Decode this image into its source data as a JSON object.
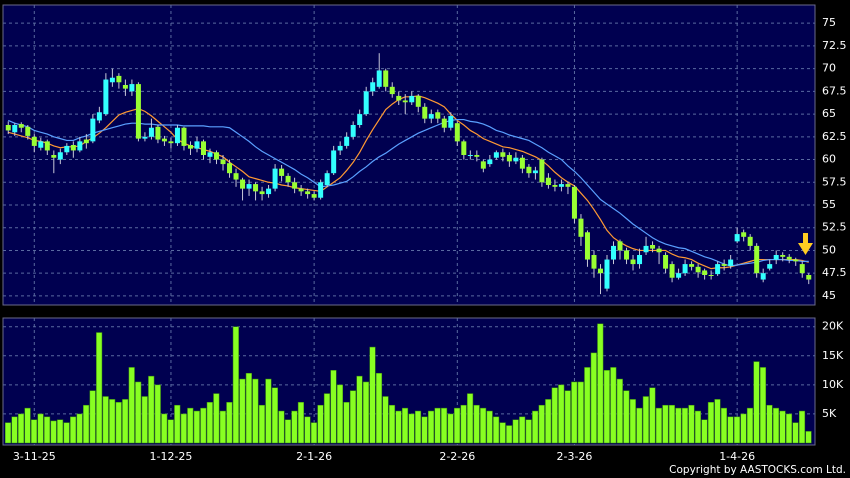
{
  "chart_data": [
    {
      "type": "candlestick",
      "categories": [
        null,
        null,
        null,
        null,
        "3-11-25",
        null,
        null,
        null,
        null,
        null,
        null,
        null,
        null,
        null,
        null,
        null,
        null,
        null,
        null,
        null,
        null,
        null,
        null,
        null,
        null,
        "1-12-25",
        null,
        null,
        null,
        null,
        null,
        null,
        null,
        null,
        null,
        null,
        null,
        null,
        null,
        null,
        null,
        null,
        null,
        null,
        null,
        null,
        null,
        "2-1-26",
        null,
        null,
        null,
        null,
        null,
        null,
        null,
        null,
        null,
        null,
        null,
        null,
        null,
        null,
        null,
        null,
        null,
        null,
        null,
        null,
        null,
        "2-2-26",
        null,
        null,
        null,
        null,
        null,
        null,
        null,
        null,
        null,
        null,
        null,
        null,
        null,
        null,
        null,
        null,
        null,
        "2-3-26",
        null,
        null,
        null,
        null,
        null,
        null,
        null,
        null,
        null,
        null,
        null,
        null,
        null,
        null,
        null,
        null,
        null,
        null,
        null,
        null,
        null,
        null,
        null,
        null,
        "1-4-26",
        null,
        null,
        null,
        null,
        null,
        null,
        null,
        null,
        null,
        null,
        null
      ],
      "open": [
        63.8,
        63.0,
        63.9,
        63.6,
        62.5,
        61.3,
        62.0,
        60.5,
        60.0,
        60.8,
        61.6,
        61.0,
        62.2,
        62.0,
        64.3,
        65.0,
        68.5,
        69.2,
        68.2,
        67.5,
        68.3,
        62.3,
        62.5,
        63.6,
        62.3,
        62.0,
        61.8,
        63.5,
        61.6,
        61.2,
        62.0,
        60.3,
        60.8,
        60.0,
        59.6,
        58.5,
        57.8,
        56.8,
        57.3,
        56.5,
        56.2,
        56.8,
        59.0,
        58.2,
        57.5,
        56.8,
        56.5,
        56.2,
        55.8,
        57.2,
        58.5,
        61.0,
        61.5,
        62.5,
        63.8,
        65.0,
        67.5,
        68.0,
        69.8,
        68.0,
        67.0,
        66.5,
        66.3,
        67.0,
        65.8,
        64.5,
        65.2,
        64.5,
        63.5,
        64.0,
        62.0,
        60.5,
        60.5,
        59.8,
        59.5,
        60.2,
        60.8,
        60.5,
        59.8,
        60.2,
        59.2,
        58.5,
        60.0,
        58.0,
        57.2,
        57.0,
        57.3,
        57.0,
        53.5,
        52.0,
        49.5,
        48.0,
        45.8,
        49.0,
        51.0,
        50.0,
        49.0,
        48.5,
        49.8,
        50.6,
        50.2,
        49.5,
        48.5,
        47.0,
        47.5,
        48.5,
        48.2,
        47.8,
        47.3,
        47.4,
        48.5,
        48.3,
        51.0,
        52.0,
        51.5,
        50.5,
        46.8,
        48.0,
        49.0,
        49.5,
        49.3,
        49.0,
        48.5,
        47.3
      ],
      "high": [
        64.2,
        64.0,
        64.1,
        63.8,
        62.8,
        62.4,
        62.2,
        61.0,
        61.2,
        61.8,
        62.0,
        62.5,
        62.8,
        65.0,
        65.8,
        69.5,
        70.0,
        69.5,
        68.8,
        68.8,
        68.5,
        63.0,
        64.5,
        63.8,
        62.6,
        62.4,
        63.8,
        63.6,
        62.0,
        62.5,
        62.2,
        61.2,
        61.0,
        60.5,
        60.0,
        59.0,
        58.0,
        57.8,
        57.5,
        57.0,
        57.2,
        59.5,
        59.4,
        58.5,
        58.0,
        57.2,
        56.8,
        56.5,
        57.8,
        58.8,
        61.5,
        62.0,
        63.0,
        64.2,
        65.5,
        68.0,
        69.0,
        71.7,
        70.0,
        68.5,
        67.5,
        67.2,
        67.5,
        67.2,
        66.2,
        65.5,
        65.5,
        64.8,
        65.2,
        64.2,
        62.2,
        61.0,
        61.0,
        60.0,
        60.5,
        61.0,
        61.2,
        60.8,
        60.8,
        60.5,
        59.5,
        59.2,
        60.2,
        58.5,
        57.8,
        57.8,
        57.6,
        57.2,
        54.0,
        52.2,
        50.0,
        48.5,
        49.5,
        51.0,
        51.2,
        50.3,
        49.5,
        50.2,
        51.5,
        51.0,
        50.5,
        49.8,
        48.8,
        48.0,
        49.0,
        48.8,
        48.5,
        48.0,
        47.8,
        48.8,
        49.0,
        49.5,
        52.5,
        52.3,
        51.8,
        50.8,
        48.0,
        49.0,
        50.0,
        49.8,
        49.6,
        49.2,
        48.8,
        47.5
      ],
      "low": [
        62.8,
        62.6,
        63.0,
        62.2,
        60.8,
        61.0,
        60.5,
        58.5,
        59.5,
        60.5,
        60.2,
        60.8,
        61.2,
        61.8,
        64.0,
        64.8,
        68.0,
        67.8,
        67.0,
        67.0,
        62.0,
        62.0,
        62.2,
        61.8,
        61.5,
        61.2,
        61.5,
        61.0,
        60.5,
        60.8,
        60.0,
        59.6,
        59.5,
        58.8,
        58.0,
        57.0,
        55.5,
        56.0,
        55.5,
        55.5,
        55.8,
        56.5,
        57.6,
        57.0,
        56.3,
        56.0,
        55.7,
        55.5,
        55.6,
        57.0,
        58.3,
        60.5,
        61.2,
        62.2,
        63.5,
        64.8,
        67.0,
        67.8,
        67.5,
        66.8,
        66.0,
        65.0,
        66.0,
        65.2,
        64.0,
        64.0,
        64.0,
        63.0,
        63.2,
        61.5,
        60.0,
        60.0,
        59.8,
        58.6,
        59.2,
        60.0,
        59.8,
        59.2,
        59.5,
        58.5,
        58.0,
        57.8,
        57.0,
        56.8,
        56.5,
        56.5,
        56.2,
        53.0,
        50.5,
        48.2,
        47.0,
        45.2,
        45.5,
        48.5,
        49.0,
        48.5,
        47.8,
        48.0,
        49.5,
        49.8,
        48.5,
        47.5,
        46.5,
        46.8,
        47.2,
        47.8,
        47.0,
        46.8,
        46.8,
        47.2,
        47.8,
        48.0,
        50.8,
        51.0,
        50.0,
        47.0,
        46.5,
        47.8,
        48.5,
        48.8,
        48.6,
        48.3,
        47.0,
        46.3
      ],
      "close": [
        63.2,
        63.8,
        63.5,
        62.6,
        61.5,
        62.0,
        61.0,
        60.2,
        60.8,
        61.5,
        61.0,
        62.0,
        61.8,
        64.5,
        65.2,
        68.8,
        69.0,
        68.5,
        67.8,
        68.3,
        62.3,
        62.5,
        63.5,
        62.2,
        62.0,
        61.8,
        63.5,
        61.5,
        61.2,
        62.0,
        60.5,
        60.8,
        60.0,
        59.5,
        58.5,
        57.8,
        56.8,
        57.3,
        56.5,
        56.2,
        56.8,
        59.0,
        58.2,
        57.5,
        56.8,
        56.5,
        56.2,
        55.8,
        57.5,
        58.5,
        61.0,
        61.5,
        62.5,
        63.8,
        65.0,
        67.5,
        68.5,
        69.8,
        68.0,
        67.2,
        66.5,
        66.3,
        67.0,
        65.8,
        64.5,
        65.0,
        64.5,
        63.5,
        64.8,
        62.0,
        60.5,
        60.5,
        60.3,
        59.0,
        60.0,
        60.8,
        60.3,
        59.8,
        60.2,
        59.0,
        58.5,
        58.8,
        57.5,
        57.2,
        57.0,
        57.3,
        57.0,
        53.5,
        51.5,
        49.0,
        48.0,
        47.5,
        49.0,
        50.5,
        50.0,
        49.0,
        48.5,
        49.5,
        50.5,
        50.2,
        49.8,
        48.0,
        47.0,
        47.5,
        48.5,
        48.2,
        47.6,
        47.3,
        47.2,
        48.5,
        48.3,
        49.0,
        51.8,
        51.5,
        50.5,
        47.5,
        47.5,
        48.5,
        49.5,
        49.3,
        49.0,
        48.8,
        47.5,
        46.8
      ],
      "up_color": "#33ffff",
      "down_color": "#99ff33",
      "lines": [
        {
          "color": "#ff9933",
          "values": [
            63.0,
            62.8,
            62.6,
            62.4,
            62.1,
            62.0,
            61.8,
            61.5,
            61.3,
            61.4,
            61.4,
            61.5,
            62.0,
            62.4,
            62.9,
            63.5,
            64.2,
            64.9,
            65.2,
            65.4,
            65.6,
            65.3,
            64.8,
            64.2,
            63.6,
            63.0,
            62.2,
            61.8,
            61.5,
            61.3,
            61.1,
            60.9,
            60.6,
            60.3,
            59.7,
            59.2,
            58.7,
            58.1,
            57.9,
            57.7,
            57.5,
            57.4,
            57.2,
            57.1,
            56.9,
            56.8,
            56.7,
            56.6,
            56.5,
            57.0,
            57.5,
            58.0,
            58.8,
            59.7,
            60.8,
            62.1,
            63.3,
            64.4,
            65.5,
            66.1,
            66.6,
            66.9,
            66.9,
            67.0,
            66.8,
            66.5,
            66.2,
            65.8,
            65.0,
            64.3,
            63.8,
            63.2,
            62.8,
            62.3,
            62.0,
            61.7,
            61.4,
            61.3,
            61.1,
            60.9,
            60.6,
            60.3,
            59.9,
            59.3,
            58.6,
            58.0,
            57.5,
            57.1,
            56.3,
            55.5,
            54.5,
            53.4,
            52.2,
            51.4,
            50.9,
            50.5,
            50.2,
            50.0,
            50.0,
            50.0,
            50.0,
            50.0,
            49.6,
            49.3,
            49.2,
            49.0,
            48.6,
            48.3,
            48.0,
            48.1,
            48.1,
            48.2,
            48.4,
            48.6,
            48.8,
            49.0,
            49.0,
            49.0,
            49.0,
            49.0,
            49.0,
            49.0,
            48.9,
            48.7
          ]
        },
        {
          "color": "#5aa0ff",
          "values": [
            64.3,
            64.0,
            63.8,
            63.6,
            63.2,
            63.0,
            62.8,
            62.5,
            62.3,
            62.1,
            62.1,
            62.4,
            62.6,
            62.9,
            63.1,
            63.3,
            63.5,
            63.7,
            63.9,
            64.0,
            64.0,
            63.9,
            63.9,
            63.8,
            63.8,
            63.8,
            63.8,
            63.7,
            63.7,
            63.7,
            63.7,
            63.6,
            63.6,
            63.6,
            63.5,
            63.0,
            62.5,
            62.0,
            61.4,
            60.9,
            60.5,
            60.1,
            59.7,
            59.3,
            58.9,
            58.4,
            58.0,
            57.5,
            57.0,
            57.1,
            57.2,
            57.4,
            57.6,
            58.1,
            58.7,
            59.2,
            59.8,
            60.3,
            60.7,
            61.2,
            61.7,
            62.1,
            62.5,
            62.9,
            63.2,
            63.5,
            63.8,
            64.1,
            64.3,
            64.4,
            64.4,
            64.2,
            64.1,
            63.9,
            63.6,
            63.2,
            63.0,
            62.7,
            62.5,
            62.3,
            62.1,
            61.7,
            61.3,
            60.8,
            60.4,
            60.0,
            59.3,
            58.7,
            58.0,
            57.2,
            56.4,
            55.6,
            55.1,
            54.6,
            54.1,
            53.5,
            52.9,
            52.4,
            51.9,
            51.4,
            51.0,
            50.7,
            50.5,
            50.3,
            50.2,
            49.9,
            49.6,
            49.3,
            49.1,
            48.8,
            48.5,
            48.3,
            48.4,
            48.5,
            48.6,
            48.7,
            48.9,
            49.0,
            49.0,
            49.0,
            48.9,
            48.9,
            48.8,
            48.8
          ]
        }
      ],
      "ylim": [
        44,
        77
      ],
      "yticks": [
        45,
        47.5,
        50,
        52.5,
        55,
        57.5,
        60,
        62.5,
        65,
        67.5,
        70,
        72.5,
        75
      ],
      "grid": true
    },
    {
      "type": "bar",
      "values": [
        3500,
        4500,
        5000,
        6000,
        4000,
        5000,
        4500,
        3800,
        4000,
        3500,
        4500,
        5000,
        6500,
        9000,
        19000,
        8000,
        7500,
        7000,
        7500,
        13000,
        10500,
        8000,
        11500,
        10000,
        5000,
        4000,
        6500,
        5000,
        6000,
        5500,
        6000,
        7000,
        8500,
        5500,
        7000,
        20000,
        11000,
        12000,
        11000,
        6500,
        11000,
        9500,
        5500,
        4000,
        5500,
        7000,
        4500,
        3500,
        6500,
        8500,
        12500,
        10000,
        7000,
        9000,
        11500,
        10500,
        16500,
        12000,
        8000,
        6500,
        5500,
        6000,
        5000,
        5500,
        4500,
        5500,
        6000,
        6000,
        5000,
        6000,
        6500,
        8500,
        6500,
        6000,
        5500,
        4500,
        3500,
        3000,
        4000,
        4500,
        4000,
        5500,
        6500,
        7500,
        9500,
        10000,
        9000,
        10500,
        10500,
        13000,
        15500,
        20500,
        12500,
        13000,
        11000,
        9000,
        7500,
        6000,
        8000,
        9500,
        6000,
        6500,
        6500,
        6000,
        6000,
        6500,
        5500,
        4000,
        7000,
        7500,
        6000,
        4500,
        4500,
        5000,
        6000,
        14000,
        13000,
        6500,
        6000,
        5500,
        5000,
        3500,
        5500,
        2000
      ],
      "color": "#88ff22",
      "ylim": [
        0,
        21500
      ],
      "yticks": [
        {
          "value": 5000,
          "label": "5K"
        },
        {
          "value": 10000,
          "label": "10K"
        },
        {
          "value": 15000,
          "label": "15K"
        },
        {
          "value": 20000,
          "label": "20K"
        }
      ],
      "grid": true
    }
  ],
  "copyright": "Copyright by AASTOCKS.com Ltd."
}
